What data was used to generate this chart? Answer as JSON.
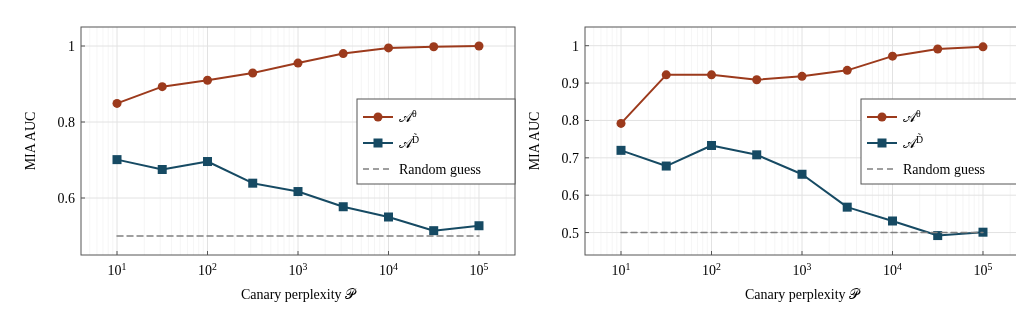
{
  "chart_data": [
    {
      "type": "line",
      "xlabel": "Canary perplexity 𝒫",
      "ylabel": "MIA AUC",
      "log": "x",
      "grid": true,
      "legend": "right",
      "x": [
        10,
        31.6,
        100,
        316,
        1000,
        3160,
        10000,
        31600,
        100000
      ],
      "xlim": [
        4,
        250000
      ],
      "xticks": [
        {
          "value": 10,
          "label": "10$^{1}$"
        },
        {
          "value": 100,
          "label": "10$^{2}$"
        },
        {
          "value": 1000,
          "label": "10$^{3}$"
        },
        {
          "value": 10000,
          "label": "10$^{4}$"
        },
        {
          "value": 100000,
          "label": "10$^{5}$"
        }
      ],
      "ylim": [
        0.45,
        1.05
      ],
      "yticks": [
        0.6,
        0.8,
        1
      ],
      "series": [
        {
          "name": "𝒜$^{θ}$",
          "color": "#9c3a1c",
          "marker": "circle",
          "values": [
            0.849,
            0.893,
            0.91,
            0.929,
            0.955,
            0.98,
            0.995,
            0.998,
            1.0
          ]
        },
        {
          "name": "𝒜$^{D̃}$",
          "color": "#164a63",
          "marker": "square",
          "values": [
            0.701,
            0.675,
            0.696,
            0.639,
            0.617,
            0.577,
            0.55,
            0.514,
            0.527
          ]
        },
        {
          "name": "Random guess",
          "color": "#808080",
          "marker": "none",
          "line_style": "dashed",
          "values": [
            0.5,
            0.5,
            0.5,
            0.5,
            0.5,
            0.5,
            0.5,
            0.5,
            0.5
          ]
        }
      ]
    },
    {
      "type": "line",
      "xlabel": "Canary perplexity 𝒫",
      "ylabel": "MIA AUC",
      "log": "x",
      "grid": true,
      "legend": "right",
      "x": [
        10,
        31.6,
        100,
        316,
        1000,
        3160,
        10000,
        31600,
        100000
      ],
      "xlim": [
        4,
        250000
      ],
      "xticks": [
        {
          "value": 10,
          "label": "10$^{1}$"
        },
        {
          "value": 100,
          "label": "10$^{2}$"
        },
        {
          "value": 1000,
          "label": "10$^{3}$"
        },
        {
          "value": 10000,
          "label": "10$^{4}$"
        },
        {
          "value": 100000,
          "label": "10$^{5}$"
        }
      ],
      "ylim": [
        0.44,
        1.05
      ],
      "yticks": [
        0.5,
        0.6,
        0.7,
        0.8,
        0.9,
        1
      ],
      "series": [
        {
          "name": "𝒜$^{θ}$",
          "color": "#9c3a1c",
          "marker": "circle",
          "values": [
            0.792,
            0.922,
            0.922,
            0.909,
            0.918,
            0.934,
            0.972,
            0.991,
            0.997
          ]
        },
        {
          "name": "𝒜$^{D̃}$",
          "color": "#164a63",
          "marker": "square",
          "values": [
            0.72,
            0.678,
            0.733,
            0.708,
            0.656,
            0.568,
            0.531,
            0.492,
            0.501
          ]
        },
        {
          "name": "Random guess",
          "color": "#808080",
          "marker": "none",
          "line_style": "dashed",
          "values": [
            0.5,
            0.5,
            0.5,
            0.5,
            0.5,
            0.5,
            0.5,
            0.5,
            0.5
          ]
        }
      ]
    }
  ]
}
